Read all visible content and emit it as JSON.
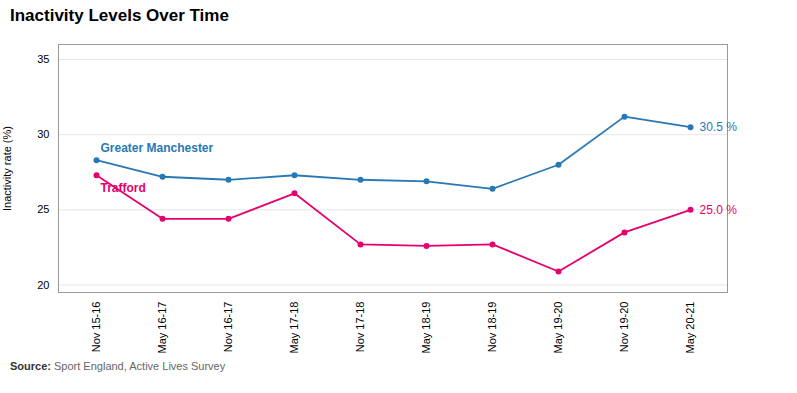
{
  "chart_data": {
    "type": "line",
    "title": "Inactivity Levels Over Time",
    "ylabel": "Inactivity rate (%)",
    "source": {
      "label": "Source:",
      "text": "Sport England, Active Lives Survey"
    },
    "categories": [
      "Nov 15-16",
      "May 16-17",
      "Nov 16-17",
      "May 17-18",
      "Nov 17-18",
      "May 18-19",
      "Nov 18-19",
      "May 19-20",
      "Nov 19-20",
      "May 20-21"
    ],
    "series": [
      {
        "name": "Greater Manchester",
        "color": "#2878b5",
        "values": [
          28.3,
          27.2,
          27.0,
          27.3,
          27.0,
          26.9,
          26.4,
          28.0,
          31.2,
          30.5
        ]
      },
      {
        "name": "Trafford",
        "color": "#e5006e",
        "values": [
          27.3,
          24.4,
          24.4,
          26.1,
          22.7,
          22.6,
          22.7,
          20.9,
          23.5,
          25.0
        ]
      }
    ],
    "annotations": [
      {
        "text": "30.5 %",
        "series": "Greater Manchester"
      },
      {
        "text": "25.0 %",
        "series": "Trafford"
      }
    ],
    "marker": "circle",
    "ylim": [
      19.5,
      36
    ],
    "yticks": [
      20,
      25,
      30,
      35
    ],
    "grid": true
  }
}
